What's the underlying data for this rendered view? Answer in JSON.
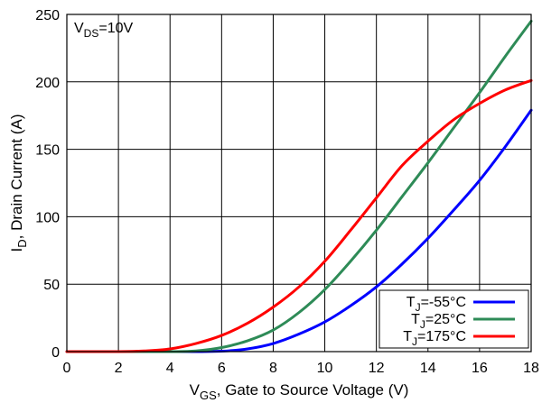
{
  "chart_data": {
    "type": "line",
    "annotation": {
      "main": "V",
      "sub": "DS",
      "tail": "=10V"
    },
    "xlabel": {
      "main": "V",
      "sub": "GS",
      "tail": ", Gate to Source Voltage (V)"
    },
    "ylabel": {
      "main": "I",
      "sub": "D",
      "tail": ", Drain Current (A)"
    },
    "xlim": [
      0,
      18
    ],
    "ylim": [
      0,
      250
    ],
    "xticks": [
      0,
      2,
      4,
      6,
      8,
      10,
      12,
      14,
      16,
      18
    ],
    "yticks": [
      0,
      50,
      100,
      150,
      200,
      250
    ],
    "grid": true,
    "legend_position": "bottom-right",
    "series": [
      {
        "name": "T_J=-55°C",
        "legend": {
          "main": "T",
          "sub": "J",
          "tail": "=-55°C"
        },
        "color": "#0000ff",
        "points": [
          [
            0,
            0
          ],
          [
            2,
            0
          ],
          [
            4,
            0
          ],
          [
            5,
            0
          ],
          [
            6,
            0.3
          ],
          [
            7,
            2
          ],
          [
            8,
            6
          ],
          [
            9,
            13
          ],
          [
            10,
            22
          ],
          [
            11,
            34
          ],
          [
            12,
            48
          ],
          [
            13,
            65
          ],
          [
            14,
            84
          ],
          [
            15,
            105
          ],
          [
            16,
            127
          ],
          [
            17,
            152
          ],
          [
            18,
            179
          ]
        ]
      },
      {
        "name": "T_J=25°C",
        "legend": {
          "main": "T",
          "sub": "J",
          "tail": "=25°C"
        },
        "color": "#2e8b57",
        "points": [
          [
            0,
            0
          ],
          [
            2,
            0
          ],
          [
            4,
            0
          ],
          [
            5,
            0.5
          ],
          [
            6,
            3
          ],
          [
            7,
            8
          ],
          [
            8,
            16
          ],
          [
            9,
            29
          ],
          [
            10,
            46
          ],
          [
            11,
            67
          ],
          [
            12,
            90
          ],
          [
            13,
            115
          ],
          [
            14,
            140
          ],
          [
            15,
            166
          ],
          [
            16,
            192
          ],
          [
            17,
            219
          ],
          [
            18,
            245
          ]
        ]
      },
      {
        "name": "T_J=175°C",
        "legend": {
          "main": "T",
          "sub": "J",
          "tail": "=175°C"
        },
        "color": "#ff0000",
        "points": [
          [
            0,
            0
          ],
          [
            2,
            0
          ],
          [
            3,
            0.5
          ],
          [
            4,
            2
          ],
          [
            5,
            6
          ],
          [
            6,
            12
          ],
          [
            7,
            21
          ],
          [
            8,
            33
          ],
          [
            9,
            48
          ],
          [
            10,
            67
          ],
          [
            11,
            90
          ],
          [
            12,
            114
          ],
          [
            13,
            138
          ],
          [
            14,
            156
          ],
          [
            15,
            172
          ],
          [
            16,
            184
          ],
          [
            17,
            194
          ],
          [
            18,
            201
          ]
        ]
      }
    ]
  }
}
